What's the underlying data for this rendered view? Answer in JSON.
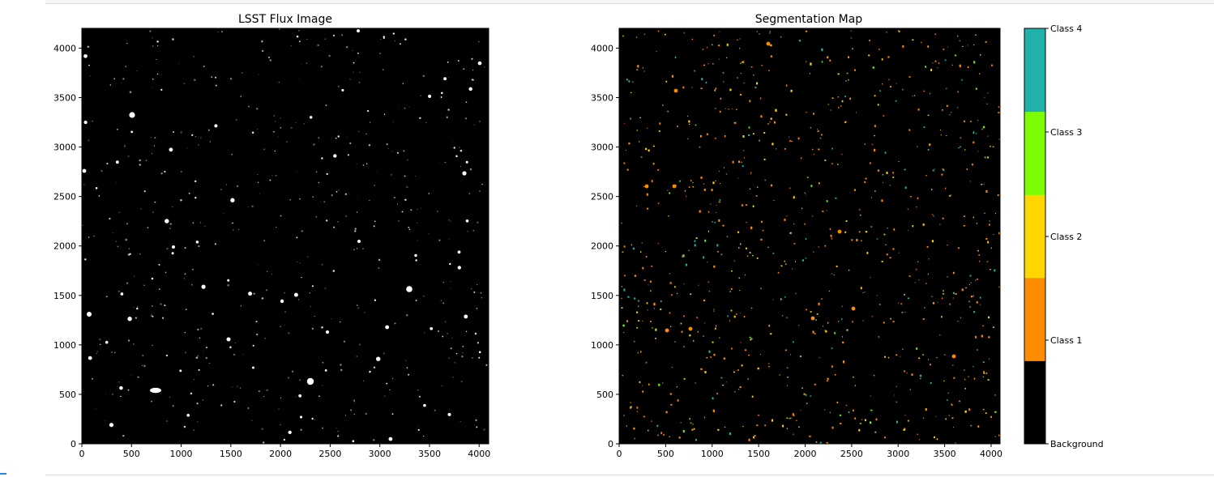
{
  "chart_data": [
    {
      "type": "heatmap",
      "title": "LSST Flux Image",
      "colormap": "gray",
      "x_ticks": [
        "0",
        "500",
        "1000",
        "1500",
        "2000",
        "2500",
        "3000",
        "3500",
        "4000"
      ],
      "y_ticks": [
        "0",
        "500",
        "1000",
        "1500",
        "2000",
        "2500",
        "3000",
        "3500",
        "4000"
      ],
      "xlim": [
        0,
        4096
      ],
      "ylim": [
        0,
        4200
      ],
      "background": "#000000",
      "source_color": "#ffffff"
    },
    {
      "type": "heatmap",
      "title": "Segmentation Map",
      "x_ticks": [
        "0",
        "500",
        "1000",
        "1500",
        "2000",
        "2500",
        "3000",
        "3500",
        "4000"
      ],
      "y_ticks": [
        "0",
        "500",
        "1000",
        "1500",
        "2000",
        "2500",
        "3000",
        "3500",
        "4000"
      ],
      "xlim": [
        0,
        4096
      ],
      "ylim": [
        0,
        4200
      ],
      "classes": [
        {
          "name": "Background",
          "color": "#000000"
        },
        {
          "name": "Class 1",
          "color": "#ff8c00"
        },
        {
          "name": "Class 2",
          "color": "#ffd700"
        },
        {
          "name": "Class 3",
          "color": "#7cfc00"
        },
        {
          "name": "Class 4",
          "color": "#20b2aa"
        }
      ],
      "colorbar_labels": [
        "Background",
        "Class 1",
        "Class 2",
        "Class 3",
        "Class 4"
      ]
    }
  ]
}
